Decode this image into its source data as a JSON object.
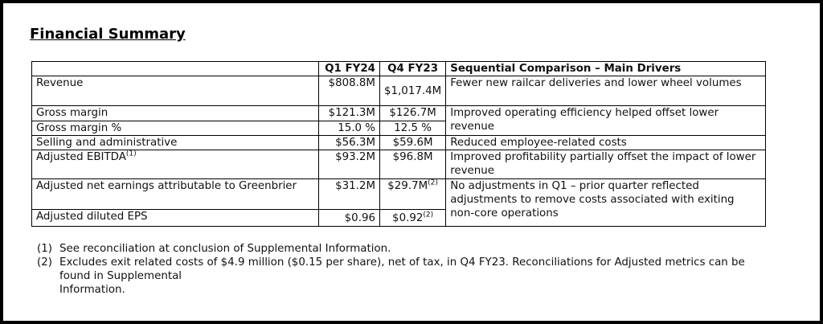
{
  "title": "Financial Summary",
  "table": {
    "header": [
      "Q1 FY24",
      "Q4 FY23",
      "Sequential Comparison – Main Drivers"
    ],
    "rows": [
      {
        "label": "Revenue",
        "q1": "$808.8M",
        "q4": "$1,017.4M"
      },
      {
        "label": "Gross margin",
        "q1": "$121.3M",
        "q4": "$126.7M"
      },
      {
        "label": "Gross margin %",
        "q1": "15.0 %",
        "q4": "12.5 %"
      },
      {
        "label": "Selling and administrative",
        "q1": "$56.3M",
        "q4": "$59.6M"
      },
      {
        "label": "Adjusted EBITDA",
        "label_note": "(1)",
        "q1": "$93.2M",
        "q4": "$96.8M"
      },
      {
        "label": "Adjusted net earnings attributable to Greenbrier",
        "q1": "$31.2M",
        "q4": "$29.7M",
        "q4_note": "(2)"
      },
      {
        "label": "Adjusted diluted EPS",
        "q1": "$0.96",
        "q4": "$0.92",
        "q4_note": "(2)"
      }
    ],
    "drivers": [
      "Fewer new railcar deliveries and lower wheel volumes",
      "Improved operating efficiency helped offset lower revenue",
      "Reduced employee-related costs",
      "Improved profitability partially offset the impact of lower revenue",
      "No adjustments in Q1 – prior quarter reflected adjustments to remove costs associated with exiting non-core operations"
    ]
  },
  "footnotes": [
    {
      "marker": "(1)",
      "lines": [
        "See reconciliation at conclusion of Supplemental Information."
      ]
    },
    {
      "marker": "(2)",
      "lines": [
        "Excludes exit related costs of $4.9 million ($0.15 per share), net of tax, in Q4 FY23. Reconciliations for Adjusted metrics can be",
        "found in Supplemental",
        "Information."
      ]
    }
  ]
}
